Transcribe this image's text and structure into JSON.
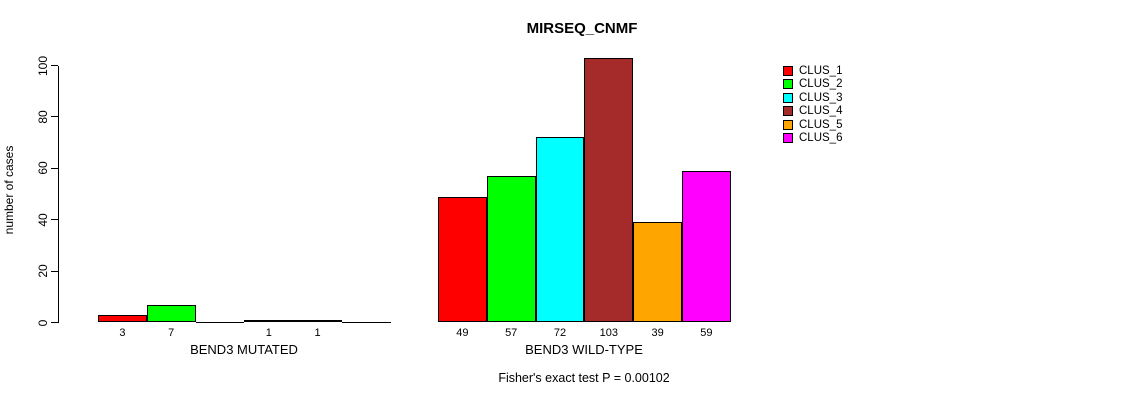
{
  "chart_data": {
    "type": "bar",
    "title": "MIRSEQ_CNMF",
    "xlabel": "",
    "ylabel": "number of cases",
    "ylim": [
      0,
      100
    ],
    "yticks": [
      0,
      20,
      40,
      60,
      80,
      100
    ],
    "grid": false,
    "legend_position": "right-inside",
    "series": [
      {
        "name": "CLUS_1",
        "color": "#ff0000"
      },
      {
        "name": "CLUS_2",
        "color": "#00ff00"
      },
      {
        "name": "CLUS_3",
        "color": "#00ffff"
      },
      {
        "name": "CLUS_4",
        "color": "#a52a2a"
      },
      {
        "name": "CLUS_5",
        "color": "#ffa500"
      },
      {
        "name": "CLUS_6",
        "color": "#ff00ff"
      }
    ],
    "groups": [
      {
        "label": "BEND3 MUTATED",
        "values": [
          3,
          7,
          0,
          1,
          1,
          0
        ]
      },
      {
        "label": "BEND3 WILD-TYPE",
        "values": [
          49,
          57,
          72,
          103,
          39,
          59
        ]
      }
    ],
    "bar_value_labels_shown_when": "value > 0",
    "annotation": "Fisher's exact test P = 0.00102"
  }
}
